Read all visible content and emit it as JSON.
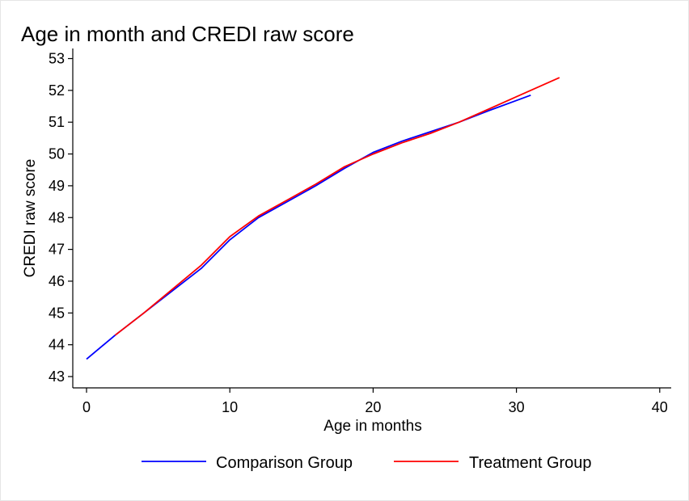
{
  "chart_data": {
    "type": "line",
    "title": "Age in month and CREDI raw score",
    "xlabel": "Age in months",
    "ylabel": "CREDI raw score",
    "xlim": [
      -1,
      41
    ],
    "ylim": [
      42.7,
      53.3
    ],
    "xticks": [
      0,
      10,
      20,
      30,
      40
    ],
    "yticks": [
      43,
      44,
      45,
      46,
      47,
      48,
      49,
      50,
      51,
      52,
      53
    ],
    "grid": false,
    "legend": "bottom",
    "series": [
      {
        "name": "Comparison Group",
        "color": "#0000ff",
        "x": [
          0,
          2,
          4,
          6,
          8,
          10,
          12,
          14,
          16,
          18,
          20,
          22,
          24,
          26,
          28,
          31
        ],
        "y": [
          43.55,
          44.3,
          45.0,
          45.7,
          46.4,
          47.3,
          48.0,
          48.5,
          49.0,
          49.55,
          50.05,
          50.4,
          50.7,
          51.0,
          51.35,
          51.85
        ]
      },
      {
        "name": "Treatment Group",
        "color": "#ff0000",
        "x": [
          2,
          4,
          6,
          8,
          10,
          12,
          14,
          16,
          18,
          20,
          22,
          24,
          26,
          28,
          30,
          33
        ],
        "y": [
          44.3,
          45.0,
          45.75,
          46.5,
          47.4,
          48.05,
          48.55,
          49.05,
          49.6,
          50.0,
          50.35,
          50.65,
          51.0,
          51.4,
          51.8,
          52.4
        ]
      }
    ]
  }
}
